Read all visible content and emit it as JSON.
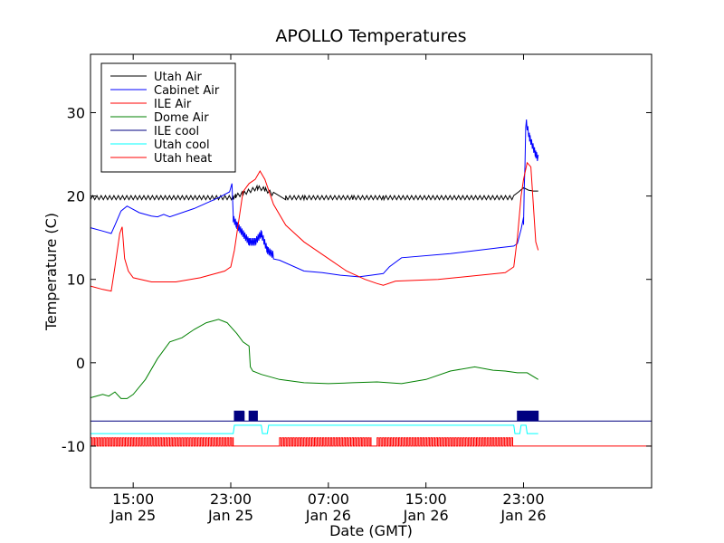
{
  "chart_data": {
    "type": "line",
    "title": "APOLLO Temperatures",
    "xlabel": "Date (GMT)",
    "ylabel": "Temperature (C)",
    "xlim": [
      11.5,
      57.5
    ],
    "ylim": [
      -15,
      37
    ],
    "grid": false,
    "legend_position": "top-left",
    "x_ticks": [
      {
        "x": 15,
        "line1": "15:00",
        "line2": "Jan 25"
      },
      {
        "x": 23,
        "line1": "23:00",
        "line2": "Jan 25"
      },
      {
        "x": 31,
        "line1": "07:00",
        "line2": "Jan 26"
      },
      {
        "x": 39,
        "line1": "15:00",
        "line2": "Jan 26"
      },
      {
        "x": 47,
        "line1": "23:00",
        "line2": "Jan 26"
      }
    ],
    "y_ticks": [
      {
        "value": -10,
        "label": "-10"
      },
      {
        "value": 0,
        "label": "0"
      },
      {
        "value": 10,
        "label": "10"
      },
      {
        "value": 20,
        "label": "20"
      },
      {
        "value": 30,
        "label": "30"
      }
    ],
    "series": [
      {
        "name": "Utah Air",
        "color": "#000000",
        "x": [
          11.5,
          23.2,
          23.4,
          24.0,
          25.2,
          25.8,
          26.5,
          27.5,
          29.0,
          33.0,
          35.5,
          46.2,
          46.6,
          47.0,
          47.4,
          47.8,
          48.2
        ],
        "y": [
          19.8,
          19.8,
          20.0,
          20.3,
          21.0,
          20.8,
          20.2,
          19.8,
          19.8,
          19.8,
          19.8,
          19.8,
          20.5,
          21.0,
          20.7,
          20.6,
          20.6
        ],
        "oscillation": {
          "ranges": [
            [
              11.5,
              26.5
            ],
            [
              27.5,
              46.2
            ]
          ],
          "amplitude": 0.5,
          "period": 0.35
        }
      },
      {
        "name": "Cabinet Air",
        "color": "#0000ff",
        "x": [
          11.5,
          12.5,
          13.2,
          13.5,
          14.0,
          14.5,
          15.5,
          16.5,
          17.0,
          17.5,
          18.0,
          20.0,
          22.0,
          22.9,
          23.1,
          23.2,
          23.5,
          24.5,
          25.0,
          25.5,
          26.0,
          27.0,
          29.0,
          30.5,
          32.0,
          33.5,
          34.5,
          35.5,
          36.0,
          37.0,
          41.0,
          45.0,
          46.2,
          46.5,
          46.8,
          47.0,
          47.2,
          47.5,
          48.0,
          48.2
        ],
        "y": [
          16.2,
          15.8,
          15.5,
          16.5,
          18.2,
          18.8,
          18.0,
          17.6,
          17.5,
          17.8,
          17.5,
          18.5,
          19.8,
          20.5,
          21.5,
          17.3,
          16.5,
          14.5,
          14.5,
          15.5,
          13.5,
          12.3,
          11.0,
          10.8,
          10.5,
          10.3,
          10.5,
          10.7,
          11.5,
          12.6,
          13.1,
          13.8,
          14.0,
          14.3,
          16.0,
          17.0,
          29.0,
          27.0,
          25.0,
          24.5
        ],
        "oscillation": {
          "ranges": [
            [
              23.2,
              26.5
            ],
            [
              47.0,
              48.2
            ]
          ],
          "amplitude": 0.9,
          "period": 0.12
        }
      },
      {
        "name": "ILE Air",
        "color": "#ff0000",
        "x": [
          11.5,
          12.5,
          13.2,
          13.5,
          13.9,
          14.1,
          14.3,
          14.6,
          15.0,
          16.5,
          18.5,
          20.5,
          22.5,
          23.0,
          23.3,
          23.6,
          24.0,
          24.5,
          25.0,
          25.4,
          25.8,
          26.5,
          27.5,
          29.0,
          31.0,
          32.5,
          34.0,
          35.0,
          35.5,
          36.5,
          40.0,
          45.5,
          46.2,
          46.5,
          46.8,
          47.0,
          47.3,
          47.6,
          48.0,
          48.2
        ],
        "y": [
          9.2,
          8.8,
          8.6,
          11.5,
          15.5,
          16.3,
          12.5,
          11.0,
          10.2,
          9.7,
          9.7,
          10.2,
          11.0,
          11.5,
          13.5,
          16.5,
          20.5,
          21.5,
          22.0,
          23.0,
          22.0,
          19.0,
          16.5,
          14.5,
          12.5,
          11.0,
          10.0,
          9.5,
          9.3,
          9.8,
          10.0,
          10.8,
          11.5,
          15.0,
          20.0,
          22.0,
          24.0,
          23.5,
          14.5,
          13.5
        ]
      },
      {
        "name": "Dome Air",
        "color": "#008000",
        "x": [
          11.5,
          12.5,
          13.0,
          13.5,
          14.0,
          14.5,
          15.0,
          16.0,
          17.0,
          18.0,
          19.0,
          20.0,
          21.0,
          22.0,
          22.7,
          23.5,
          24.0,
          24.5,
          24.6,
          24.8,
          25.5,
          27.0,
          29.0,
          31.0,
          33.0,
          35.0,
          37.0,
          39.0,
          41.0,
          43.0,
          44.5,
          45.5,
          46.5,
          47.3,
          48.2
        ],
        "y": [
          -4.2,
          -3.8,
          -4.0,
          -3.5,
          -4.3,
          -4.3,
          -3.8,
          -2.0,
          0.5,
          2.5,
          3.0,
          4.0,
          4.8,
          5.2,
          4.8,
          3.5,
          2.5,
          2.0,
          -0.5,
          -1.0,
          -1.4,
          -2.0,
          -2.4,
          -2.5,
          -2.4,
          -2.3,
          -2.5,
          -2.0,
          -1.0,
          -0.5,
          -0.9,
          -1.0,
          -1.2,
          -1.2,
          -2.0
        ]
      },
      {
        "name": "ILE cool",
        "color": "#000080",
        "x": [
          11.5,
          48.2
        ],
        "y": [
          -7.0,
          -7.0
        ],
        "pulses": {
          "ranges": [
            [
              23.3,
              24.1
            ],
            [
              24.5,
              25.2
            ],
            [
              46.5,
              48.2
            ]
          ],
          "high": -5.8,
          "period": 0.08
        }
      },
      {
        "name": "Utah cool",
        "color": "#00ffff",
        "x": [
          11.5,
          23.2,
          23.3,
          25.5,
          25.6,
          26.0,
          26.1,
          46.2,
          46.3,
          46.7,
          46.8,
          47.2,
          47.3,
          48.2
        ],
        "y": [
          -8.5,
          -8.5,
          -7.5,
          -7.5,
          -8.5,
          -8.5,
          -7.5,
          -7.5,
          -8.5,
          -8.5,
          -7.5,
          -7.5,
          -8.5,
          -8.5
        ]
      },
      {
        "name": "Utah heat",
        "color": "#ff0000",
        "x": [
          11.5,
          48.2
        ],
        "y": [
          -10.0,
          -10.0
        ],
        "pulses": {
          "ranges": [
            [
              11.5,
              23.2
            ],
            [
              27.0,
              34.5
            ],
            [
              35.0,
              46.2
            ]
          ],
          "high": -9.0,
          "period": 0.22
        }
      }
    ]
  }
}
